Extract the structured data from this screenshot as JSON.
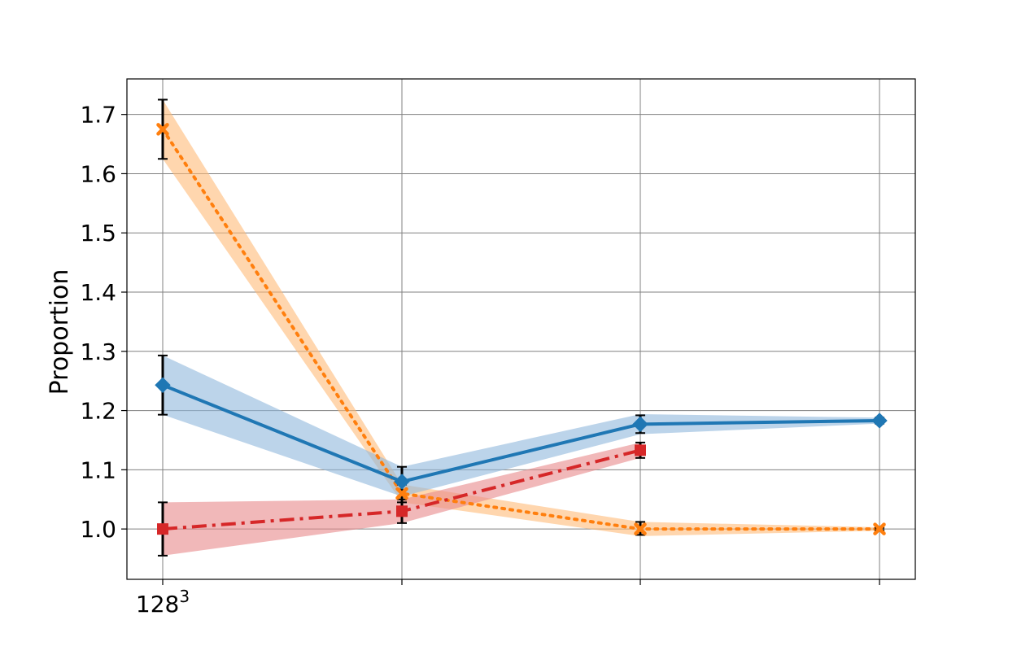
{
  "chart_data": {
    "type": "line",
    "title": "",
    "xlabel": "",
    "ylabel": "Proportion",
    "ylim": [
      0.915,
      1.76
    ],
    "x_categories": 4,
    "x_tick_labels": [
      {
        "index": 0,
        "base": "128",
        "exp": "3"
      }
    ],
    "yticks": [
      "1.0",
      "1.1",
      "1.2",
      "1.3",
      "1.4",
      "1.5",
      "1.6",
      "1.7"
    ],
    "grid": true,
    "series": [
      {
        "color": "#ff7f0e",
        "fill": "#ffbb78",
        "line_style": "dotted",
        "marker": "x-marker",
        "values": [
          1.675,
          1.06,
          1.0,
          1.0
        ],
        "lower": [
          1.625,
          1.045,
          0.99,
          0.998
        ],
        "upper": [
          1.725,
          1.075,
          1.012,
          1.002
        ],
        "band_lower": [
          1.625,
          1.045,
          0.988,
          0.997
        ],
        "band_upper": [
          1.725,
          1.075,
          1.012,
          1.003
        ]
      },
      {
        "color": "#1f77b4",
        "fill": "#8fb8dc",
        "line_style": "solid",
        "marker": "diamond-marker",
        "values": [
          1.243,
          1.08,
          1.177,
          1.183
        ],
        "lower": [
          1.193,
          1.055,
          1.162,
          1.178
        ],
        "upper": [
          1.293,
          1.105,
          1.192,
          1.188
        ],
        "band_lower": [
          1.193,
          1.055,
          1.16,
          1.178
        ],
        "band_upper": [
          1.293,
          1.105,
          1.194,
          1.188
        ]
      },
      {
        "color": "#d62728",
        "fill": "#e8888a",
        "line_style": "dashdot",
        "marker": "square-marker",
        "values": [
          1.0,
          1.03,
          1.133
        ],
        "lower": [
          0.955,
          1.01,
          1.12
        ],
        "upper": [
          1.045,
          1.05,
          1.146
        ],
        "band_lower": [
          0.955,
          1.01,
          1.12
        ],
        "band_upper": [
          1.045,
          1.05,
          1.146
        ]
      }
    ]
  }
}
